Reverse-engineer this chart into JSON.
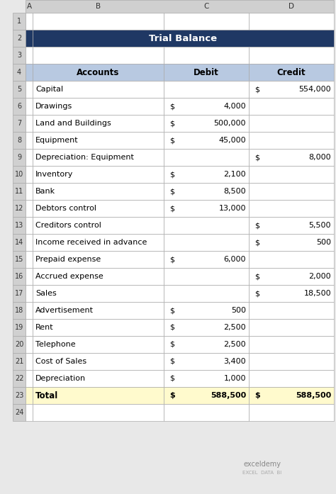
{
  "title": "Trial Balance",
  "title_bg": "#1F3864",
  "title_fg": "#FFFFFF",
  "header_bg": "#B8C9E1",
  "header_fg": "#000000",
  "col_headers": [
    "Accounts",
    "Debit",
    "Credit"
  ],
  "rows": [
    {
      "account": "Capital",
      "debit": "",
      "credit": "554,000"
    },
    {
      "account": "Drawings",
      "debit": "4,000",
      "credit": ""
    },
    {
      "account": "Land and Buildings",
      "debit": "500,000",
      "credit": ""
    },
    {
      "account": "Equipment",
      "debit": "45,000",
      "credit": ""
    },
    {
      "account": "Depreciation: Equipment",
      "debit": "",
      "credit": "8,000"
    },
    {
      "account": "Inventory",
      "debit": "2,100",
      "credit": ""
    },
    {
      "account": "Bank",
      "debit": "8,500",
      "credit": ""
    },
    {
      "account": "Debtors control",
      "debit": "13,000",
      "credit": ""
    },
    {
      "account": "Creditors control",
      "debit": "",
      "credit": "5,500"
    },
    {
      "account": "Income received in advance",
      "debit": "",
      "credit": "500"
    },
    {
      "account": "Prepaid expense",
      "debit": "6,000",
      "credit": ""
    },
    {
      "account": "Accrued expense",
      "debit": "",
      "credit": "2,000"
    },
    {
      "account": "Sales",
      "debit": "",
      "credit": "18,500"
    },
    {
      "account": "Advertisement",
      "debit": "500",
      "credit": ""
    },
    {
      "account": "Rent",
      "debit": "2,500",
      "credit": ""
    },
    {
      "account": "Telephone",
      "debit": "2,500",
      "credit": ""
    },
    {
      "account": "Cost of Sales",
      "debit": "3,400",
      "credit": ""
    },
    {
      "account": "Depreciation",
      "debit": "1,000",
      "credit": ""
    }
  ],
  "total_row": {
    "account": "Total",
    "debit": "588,500",
    "credit": "588,500",
    "bg": "#FFFACD",
    "bold": true
  },
  "border_color": "#AAAAAA",
  "sheet_bg": "#E8E8E8",
  "col_header_labels": [
    "A",
    "B",
    "C",
    "D"
  ],
  "row_numbers": [
    "1",
    "2",
    "3",
    "4",
    "5",
    "6",
    "7",
    "8",
    "9",
    "10",
    "11",
    "12",
    "13",
    "14",
    "15",
    "16",
    "17",
    "18",
    "19",
    "20",
    "21",
    "22",
    "23",
    "24"
  ],
  "logo_line1": "exceldemy",
  "logo_line2": "EXCEL  DATA  BI"
}
